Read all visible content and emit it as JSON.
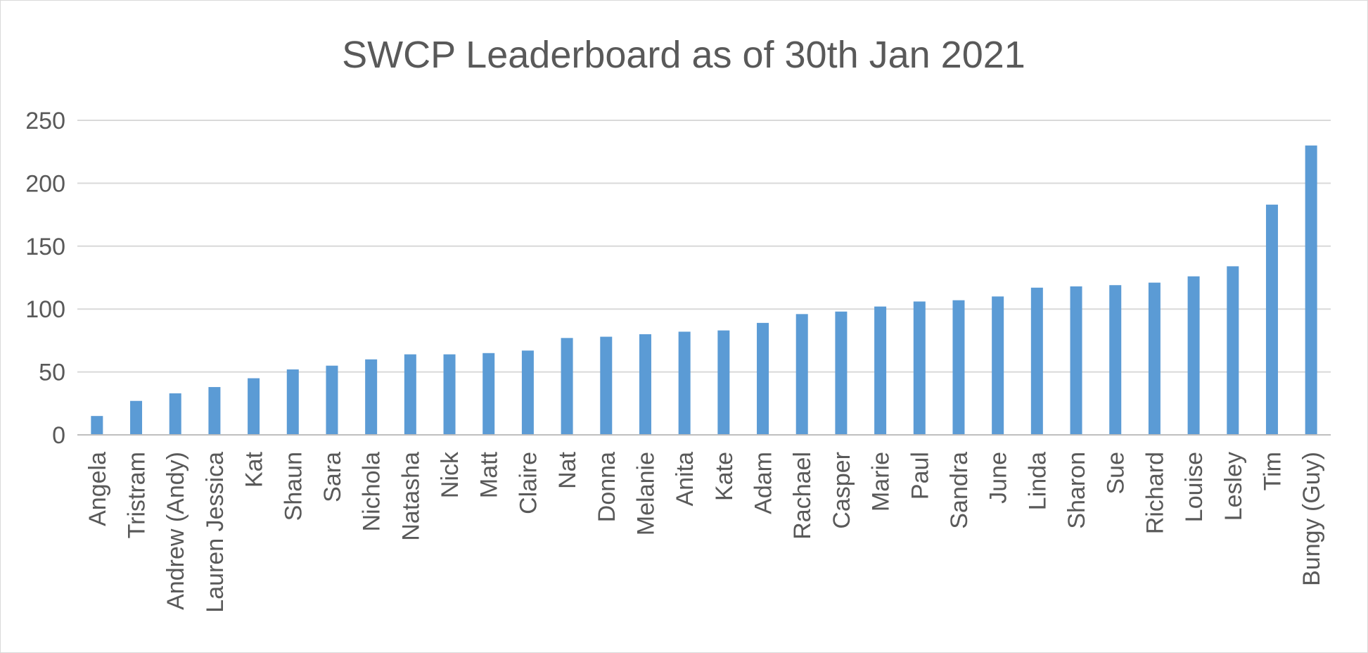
{
  "chart_data": {
    "type": "bar",
    "title": "SWCP Leaderboard as of 30th Jan 2021",
    "xlabel": "",
    "ylabel": "",
    "ylim": [
      0,
      250
    ],
    "yticks": [
      0,
      50,
      100,
      150,
      200,
      250
    ],
    "grid": true,
    "legend": "none",
    "bar_color": "#5b9bd5",
    "categories": [
      "Angela",
      "Tristram",
      "Andrew (Andy)",
      "Lauren Jessica",
      "Kat",
      "Shaun",
      "Sara",
      "Nichola",
      "Natasha",
      "Nick",
      "Matt",
      "Claire",
      "Nat",
      "Donna",
      "Melanie",
      "Anita",
      "Kate",
      "Adam",
      "Rachael",
      "Casper",
      "Marie",
      "Paul",
      "Sandra",
      "June",
      "Linda",
      "Sharon",
      "Sue",
      "Richard",
      "Louise",
      "Lesley",
      "Tim",
      "Bungy (Guy)"
    ],
    "values": [
      15,
      27,
      33,
      38,
      45,
      52,
      55,
      60,
      64,
      64,
      65,
      67,
      77,
      78,
      80,
      82,
      83,
      89,
      96,
      98,
      102,
      106,
      107,
      110,
      117,
      118,
      119,
      121,
      126,
      134,
      183,
      230
    ]
  }
}
